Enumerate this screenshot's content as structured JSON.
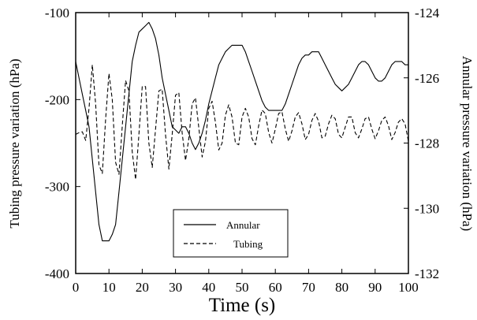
{
  "chart_data": {
    "type": "line",
    "title": "",
    "xlabel": "Time (s)",
    "ylabel_left": "Tubing pressure variation (hPa)",
    "ylabel_right": "Annular pressure variation (hPa)",
    "xlim": [
      0,
      100
    ],
    "ylim_left": [
      -400,
      -100
    ],
    "ylim_right": [
      -132,
      -124
    ],
    "xticks": [
      "0",
      "10",
      "20",
      "30",
      "40",
      "50",
      "60",
      "70",
      "80",
      "90",
      "100"
    ],
    "yticks_left": [
      "-100",
      "-200",
      "-300",
      "-400"
    ],
    "yticks_right": [
      "-124",
      "-126",
      "-128",
      "-130",
      "-132"
    ],
    "grid": false,
    "legend_placement": "bottom-center",
    "series": [
      {
        "name": "Annular",
        "axis": "right",
        "style": "solid",
        "x": [
          0,
          1,
          2,
          3,
          4,
          5,
          6,
          7,
          8,
          9,
          10,
          11,
          12,
          13,
          14,
          15,
          16,
          17,
          18,
          19,
          20,
          21,
          22,
          23,
          24,
          25,
          26,
          27,
          28,
          29,
          30,
          31,
          32,
          33,
          34,
          35,
          36,
          37,
          38,
          39,
          40,
          41,
          42,
          43,
          44,
          45,
          46,
          47,
          48,
          49,
          50,
          51,
          52,
          53,
          54,
          55,
          56,
          57,
          58,
          59,
          60,
          61,
          62,
          63,
          64,
          65,
          66,
          67,
          68,
          69,
          70,
          71,
          72,
          73,
          74,
          75,
          76,
          77,
          78,
          79,
          80,
          81,
          82,
          83,
          84,
          85,
          86,
          87,
          88,
          89,
          90,
          91,
          92,
          93,
          94,
          95,
          96,
          97,
          98,
          99,
          100
        ],
        "y": [
          -125.5,
          -126.0,
          -126.5,
          -127.0,
          -127.5,
          -128.5,
          -129.5,
          -130.5,
          -131.0,
          -131.0,
          -131.0,
          -130.8,
          -130.5,
          -129.5,
          -128.5,
          -127.5,
          -126.5,
          -125.5,
          -125.0,
          -124.6,
          -124.5,
          -124.4,
          -124.3,
          -124.5,
          -124.8,
          -125.3,
          -126.0,
          -126.5,
          -127.0,
          -127.5,
          -127.6,
          -127.7,
          -127.5,
          -127.5,
          -127.7,
          -128.0,
          -128.2,
          -128.0,
          -127.7,
          -127.3,
          -126.8,
          -126.4,
          -126.0,
          -125.6,
          -125.4,
          -125.2,
          -125.1,
          -125.0,
          -125.0,
          -125.0,
          -125.0,
          -125.2,
          -125.5,
          -125.8,
          -126.1,
          -126.4,
          -126.7,
          -126.9,
          -127.0,
          -127.0,
          -127.0,
          -127.0,
          -127.0,
          -126.8,
          -126.5,
          -126.2,
          -125.9,
          -125.6,
          -125.4,
          -125.3,
          -125.3,
          -125.2,
          -125.2,
          -125.2,
          -125.4,
          -125.6,
          -125.8,
          -126.0,
          -126.2,
          -126.3,
          -126.4,
          -126.3,
          -126.2,
          -126.0,
          -125.8,
          -125.6,
          -125.5,
          -125.5,
          -125.6,
          -125.8,
          -126.0,
          -126.1,
          -126.1,
          -126.0,
          -125.8,
          -125.6,
          -125.5,
          -125.5,
          -125.5,
          -125.6,
          -125.6
        ]
      },
      {
        "name": "Tubing",
        "axis": "left",
        "style": "dashed",
        "x": [
          0,
          1,
          2,
          3,
          4,
          5,
          6,
          7,
          8,
          9,
          10,
          11,
          12,
          13,
          14,
          15,
          16,
          17,
          18,
          19,
          20,
          21,
          22,
          23,
          24,
          25,
          26,
          27,
          28,
          29,
          30,
          31,
          32,
          33,
          34,
          35,
          36,
          37,
          38,
          39,
          40,
          41,
          42,
          43,
          44,
          45,
          46,
          47,
          48,
          49,
          50,
          51,
          52,
          53,
          54,
          55,
          56,
          57,
          58,
          59,
          60,
          61,
          62,
          63,
          64,
          65,
          66,
          67,
          68,
          69,
          70,
          71,
          72,
          73,
          74,
          75,
          76,
          77,
          78,
          79,
          80,
          81,
          82,
          83,
          84,
          85,
          86,
          87,
          88,
          89,
          90,
          91,
          92,
          93,
          94,
          95,
          96,
          97,
          98,
          99,
          100
        ],
        "y": [
          -240,
          -238,
          -237,
          -247,
          -210,
          -160,
          -205,
          -275,
          -285,
          -222,
          -170,
          -200,
          -272,
          -286,
          -230,
          -178,
          -190,
          -260,
          -292,
          -240,
          -185,
          -185,
          -250,
          -278,
          -234,
          -190,
          -188,
          -240,
          -280,
          -240,
          -195,
          -192,
          -238,
          -270,
          -245,
          -205,
          -198,
          -232,
          -266,
          -248,
          -210,
          -202,
          -226,
          -258,
          -250,
          -218,
          -206,
          -220,
          -250,
          -252,
          -220,
          -210,
          -220,
          -245,
          -252,
          -230,
          -212,
          -216,
          -238,
          -250,
          -234,
          -216,
          -214,
          -234,
          -248,
          -236,
          -220,
          -215,
          -228,
          -246,
          -240,
          -224,
          -216,
          -225,
          -244,
          -242,
          -228,
          -218,
          -222,
          -240,
          -244,
          -232,
          -220,
          -220,
          -238,
          -244,
          -234,
          -222,
          -220,
          -234,
          -245,
          -236,
          -224,
          -220,
          -230,
          -246,
          -238,
          -226,
          -222,
          -228,
          -248
        ]
      }
    ]
  }
}
